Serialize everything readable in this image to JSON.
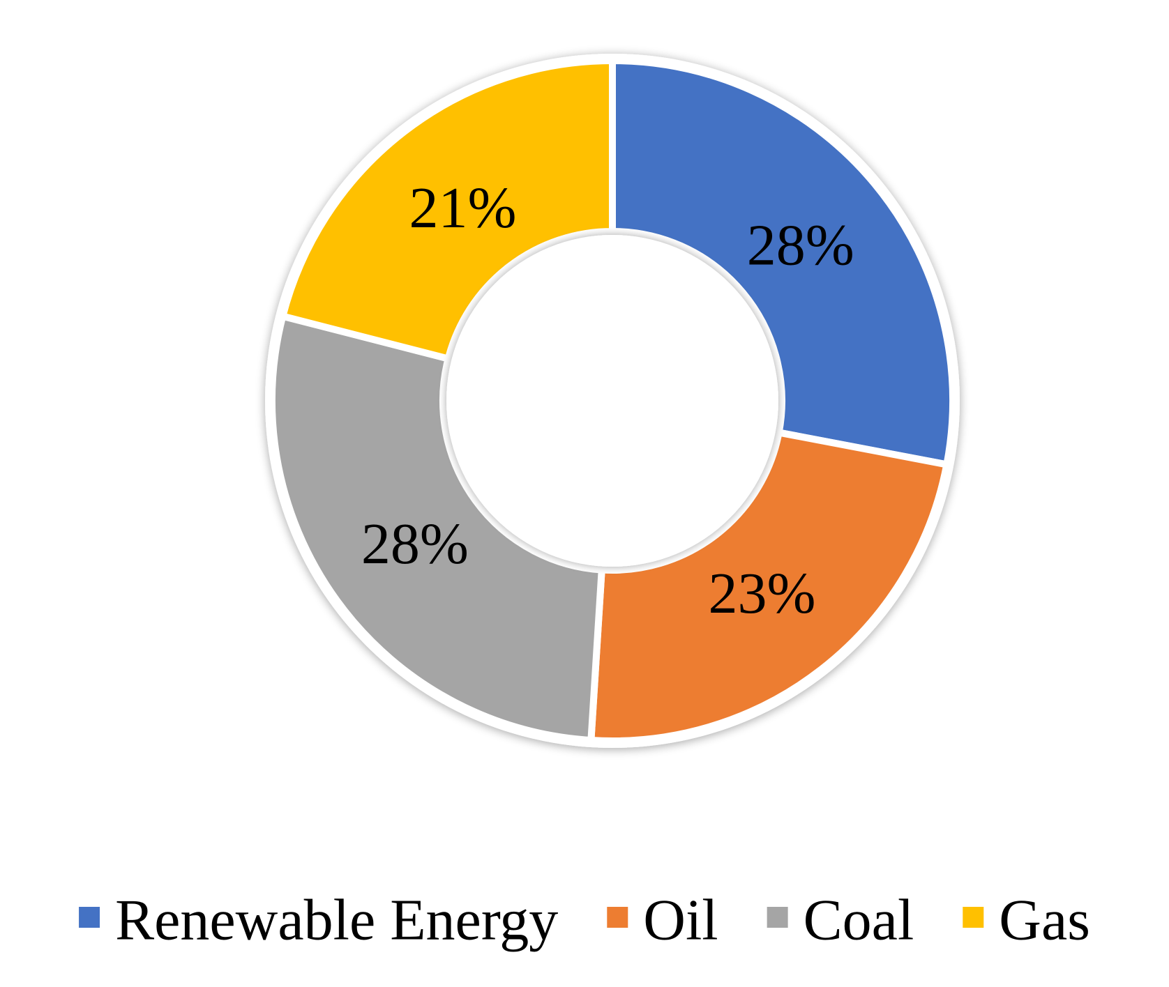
{
  "chart_data": {
    "type": "pie",
    "variant": "donut",
    "legend_position": "bottom",
    "slices": [
      {
        "label": "Renewable Energy",
        "value": 28,
        "display": "28%",
        "color": "#4472C4"
      },
      {
        "label": "Oil",
        "value": 23,
        "display": "23%",
        "color": "#ED7D31"
      },
      {
        "label": "Coal",
        "value": 28,
        "display": "28%",
        "color": "#A5A5A5"
      },
      {
        "label": "Gas",
        "value": 21,
        "display": "21%",
        "color": "#FFC000"
      }
    ]
  }
}
